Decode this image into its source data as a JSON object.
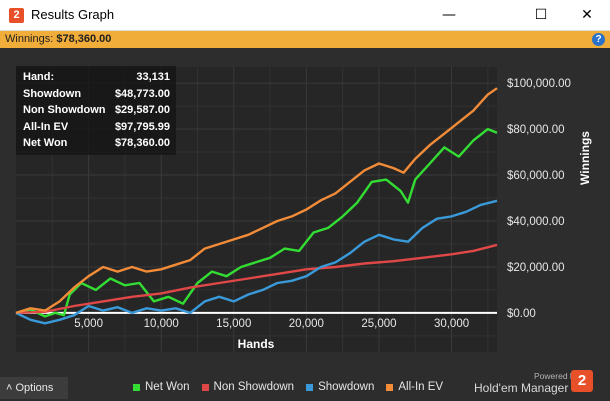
{
  "window": {
    "title": "Results Graph",
    "app_icon_glyph": "2",
    "minimize_glyph": "—",
    "maximize_glyph": "☐",
    "close_glyph": "✕"
  },
  "winnings_bar": {
    "label": "Winnings:",
    "value": "$78,360.00",
    "help_glyph": "?"
  },
  "summary": [
    {
      "label": "Hand:",
      "value": "33,131"
    },
    {
      "label": "Showdown",
      "value": "$48,773.00"
    },
    {
      "label": "Non Showdown",
      "value": "$29,587.00"
    },
    {
      "label": "All-In EV",
      "value": "$97,795.99"
    },
    {
      "label": "Net Won",
      "value": "$78,360.00"
    }
  ],
  "chart_data": {
    "type": "line",
    "xlabel": "Hands",
    "ylabel": "Winnings",
    "xlim": [
      0,
      33131
    ],
    "ylim": [
      -17000,
      107000
    ],
    "x_ticks": [
      5000,
      10000,
      15000,
      20000,
      25000,
      30000
    ],
    "x_tick_labels": [
      "5,000",
      "10,000",
      "15,000",
      "20,000",
      "25,000",
      "30,000"
    ],
    "y_ticks": [
      0,
      20000,
      40000,
      60000,
      80000,
      100000
    ],
    "y_tick_labels": [
      "$0.00",
      "$20,000.00",
      "$40,000.00",
      "$60,000.00",
      "$80,000.00",
      "$100,000.00"
    ],
    "grid": true,
    "legend_position": "bottom",
    "series": [
      {
        "name": "Net Won",
        "color": "#33dd33",
        "points": [
          [
            0,
            0
          ],
          [
            1000,
            1500
          ],
          [
            2000,
            -1500
          ],
          [
            2700,
            0
          ],
          [
            3300,
            -1000
          ],
          [
            3700,
            8000
          ],
          [
            4500,
            13000
          ],
          [
            5500,
            10000
          ],
          [
            6500,
            15000
          ],
          [
            7500,
            12000
          ],
          [
            8500,
            13000
          ],
          [
            9500,
            5000
          ],
          [
            10500,
            7000
          ],
          [
            11500,
            4000
          ],
          [
            12500,
            13000
          ],
          [
            13500,
            18000
          ],
          [
            14500,
            16000
          ],
          [
            15500,
            20000
          ],
          [
            16500,
            22000
          ],
          [
            17500,
            24000
          ],
          [
            18500,
            28000
          ],
          [
            19500,
            27000
          ],
          [
            20500,
            35000
          ],
          [
            21500,
            37000
          ],
          [
            22500,
            42000
          ],
          [
            23500,
            48000
          ],
          [
            24500,
            57000
          ],
          [
            25500,
            58000
          ],
          [
            26500,
            53000
          ],
          [
            27000,
            48000
          ],
          [
            27500,
            58000
          ],
          [
            28500,
            65000
          ],
          [
            29500,
            72000
          ],
          [
            30500,
            68000
          ],
          [
            31500,
            75000
          ],
          [
            32500,
            80000
          ],
          [
            33131,
            78360
          ]
        ]
      },
      {
        "name": "Non Showdown",
        "color": "#e04848",
        "points": [
          [
            0,
            0
          ],
          [
            2000,
            500
          ],
          [
            4000,
            3000
          ],
          [
            6000,
            5000
          ],
          [
            8000,
            7000
          ],
          [
            10000,
            8500
          ],
          [
            12000,
            11000
          ],
          [
            14000,
            13000
          ],
          [
            16000,
            15000
          ],
          [
            18000,
            17000
          ],
          [
            20000,
            19000
          ],
          [
            22000,
            20000
          ],
          [
            24000,
            21500
          ],
          [
            26000,
            22500
          ],
          [
            28000,
            24000
          ],
          [
            30000,
            25500
          ],
          [
            31500,
            27000
          ],
          [
            33131,
            29587
          ]
        ]
      },
      {
        "name": "Showdown",
        "color": "#3a9ad9",
        "points": [
          [
            0,
            0
          ],
          [
            1000,
            -3000
          ],
          [
            2000,
            -4500
          ],
          [
            3000,
            -3000
          ],
          [
            4000,
            -1000
          ],
          [
            5000,
            3000
          ],
          [
            6000,
            1000
          ],
          [
            7000,
            2500
          ],
          [
            8000,
            0
          ],
          [
            9000,
            2000
          ],
          [
            10000,
            1000
          ],
          [
            11000,
            2000
          ],
          [
            12000,
            0
          ],
          [
            13000,
            5000
          ],
          [
            14000,
            7000
          ],
          [
            15000,
            5000
          ],
          [
            16000,
            8000
          ],
          [
            17000,
            10000
          ],
          [
            18000,
            13000
          ],
          [
            19000,
            14000
          ],
          [
            20000,
            16000
          ],
          [
            21000,
            20000
          ],
          [
            22000,
            22000
          ],
          [
            23000,
            26000
          ],
          [
            24000,
            31000
          ],
          [
            25000,
            34000
          ],
          [
            26000,
            32000
          ],
          [
            27000,
            31000
          ],
          [
            28000,
            37000
          ],
          [
            29000,
            41000
          ],
          [
            30000,
            42000
          ],
          [
            31000,
            44000
          ],
          [
            32000,
            47000
          ],
          [
            33131,
            48773
          ]
        ]
      },
      {
        "name": "All-In EV",
        "color": "#f28c38",
        "points": [
          [
            0,
            0
          ],
          [
            1000,
            2000
          ],
          [
            2000,
            1000
          ],
          [
            3000,
            5000
          ],
          [
            4000,
            11000
          ],
          [
            5000,
            16000
          ],
          [
            6000,
            20000
          ],
          [
            7000,
            18000
          ],
          [
            8000,
            20000
          ],
          [
            9000,
            18000
          ],
          [
            10000,
            19000
          ],
          [
            11000,
            21000
          ],
          [
            12000,
            23000
          ],
          [
            13000,
            28000
          ],
          [
            14000,
            30000
          ],
          [
            15000,
            32000
          ],
          [
            16000,
            34000
          ],
          [
            17000,
            37000
          ],
          [
            18000,
            40000
          ],
          [
            19000,
            42000
          ],
          [
            20000,
            45000
          ],
          [
            21000,
            49000
          ],
          [
            22000,
            52000
          ],
          [
            23000,
            57000
          ],
          [
            24000,
            62000
          ],
          [
            25000,
            65000
          ],
          [
            26000,
            63000
          ],
          [
            26700,
            61000
          ],
          [
            27500,
            67000
          ],
          [
            28500,
            73000
          ],
          [
            29500,
            78000
          ],
          [
            30500,
            83000
          ],
          [
            31500,
            88000
          ],
          [
            32500,
            95000
          ],
          [
            33131,
            97796
          ]
        ]
      }
    ]
  },
  "bottom": {
    "options_label": "˄   Options",
    "powered_by": "Powered by",
    "brand": "Hold'em Manager",
    "brand_logo_glyph": "2"
  }
}
